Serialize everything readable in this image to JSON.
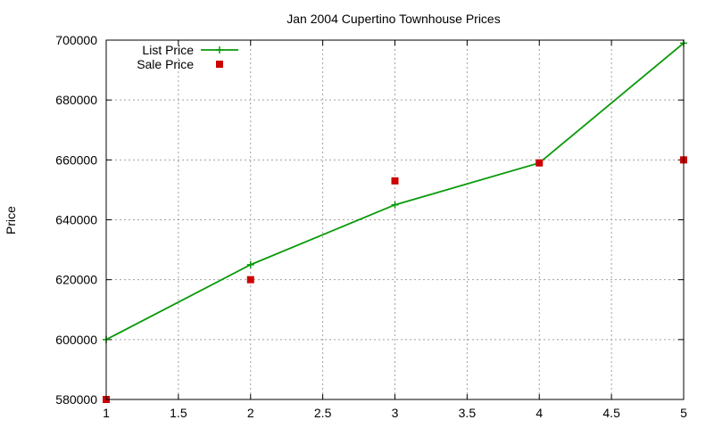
{
  "chart_data": {
    "type": "line",
    "title": "Jan 2004 Cupertino Townhouse Prices",
    "xlabel": "",
    "ylabel": "Price",
    "xlim": [
      1,
      5
    ],
    "ylim": [
      580000,
      700000
    ],
    "x_ticks": [
      "1",
      "1.5",
      "2",
      "2.5",
      "3",
      "3.5",
      "4",
      "4.5",
      "5"
    ],
    "y_ticks": [
      "580000",
      "600000",
      "620000",
      "640000",
      "660000",
      "680000",
      "700000"
    ],
    "grid": true,
    "legend_position": "top-left",
    "series": [
      {
        "name": "List Price",
        "style": "line-with-plus-markers",
        "color": "#0a9a0a",
        "x": [
          1,
          2,
          3,
          4,
          5
        ],
        "y": [
          600000,
          625000,
          645000,
          659000,
          699000
        ]
      },
      {
        "name": "Sale Price",
        "style": "square-markers",
        "color": "#cc0000",
        "x": [
          1,
          2,
          3,
          4,
          5
        ],
        "y": [
          580000,
          620000,
          653000,
          659000,
          660000
        ]
      }
    ]
  }
}
